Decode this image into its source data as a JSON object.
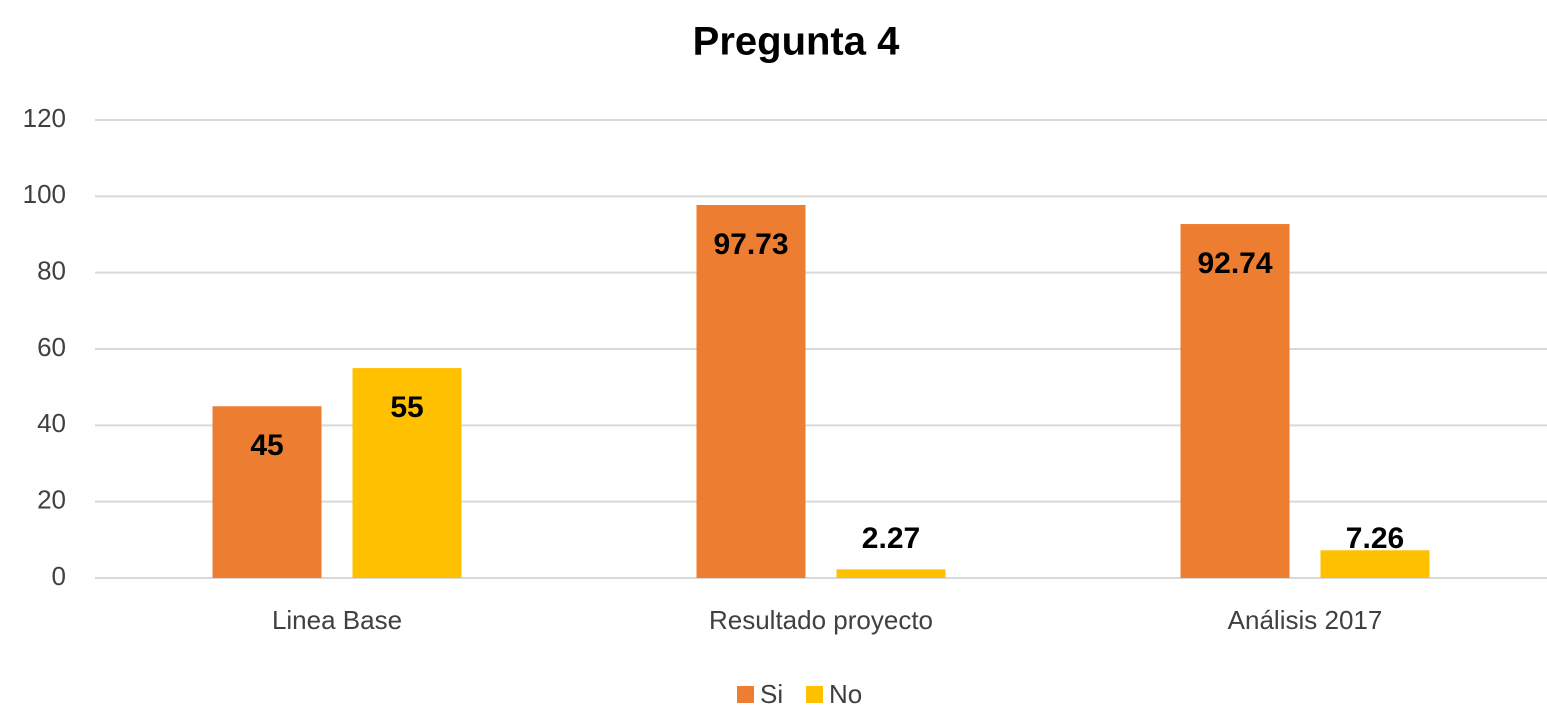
{
  "chart_data": {
    "type": "bar",
    "title": "Pregunta 4",
    "categories": [
      "Linea Base",
      "Resultado proyecto",
      "Análisis 2017"
    ],
    "series": [
      {
        "name": "Si",
        "color": "#ed7d31",
        "values": [
          45,
          97.73,
          92.74
        ]
      },
      {
        "name": "No",
        "color": "#ffc000",
        "values": [
          55,
          2.27,
          7.26
        ]
      }
    ],
    "ylim": [
      0,
      120
    ],
    "yticks": [
      0,
      20,
      40,
      60,
      80,
      100,
      120
    ],
    "grid": true,
    "legend": "bottom"
  }
}
